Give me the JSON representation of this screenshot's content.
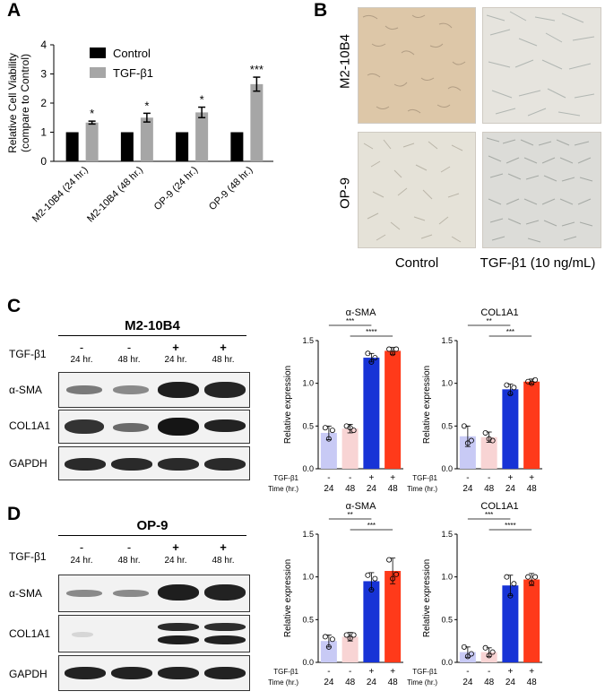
{
  "panels": {
    "a": {
      "letter": "A",
      "chart_data": {
        "type": "bar",
        "ylabel": "Relative Cell Viability\n(compare to Control)",
        "ylabel_lines": [
          "Relative Cell Viability",
          "(compare to Control)"
        ],
        "ylim": [
          0,
          4
        ],
        "yticks": [
          "0",
          "1",
          "2",
          "3",
          "4"
        ],
        "categories": [
          "M2-10B4 (24 hr.)",
          "M2-10B4 (48 hr.)",
          "OP-9 (24 hr.)",
          "OP-9 (48 hr.)"
        ],
        "series": [
          {
            "name": "Control",
            "color": "#000000",
            "values": [
              1,
              1,
              1,
              1
            ],
            "errors": [
              0,
              0,
              0,
              0
            ]
          },
          {
            "name": "TGF-β1",
            "color": "#a6a6a6",
            "values": [
              1.33,
              1.5,
              1.68,
              2.65
            ],
            "errors": [
              0.05,
              0.15,
              0.18,
              0.24
            ]
          }
        ],
        "significance": [
          "*",
          "*",
          "*",
          "***"
        ],
        "legend_position": "top-left"
      }
    },
    "b": {
      "letter": "B",
      "rows": [
        "M2-10B4",
        "OP-9"
      ],
      "columns": [
        "Control",
        "TGF-β1 (10 ng/mL)"
      ]
    },
    "c": {
      "letter": "C",
      "cell_line": "M2-10B4",
      "treatment_label": "TGF-β1",
      "lanes": [
        {
          "sign": "-",
          "time": "24 hr."
        },
        {
          "sign": "-",
          "time": "48 hr."
        },
        {
          "sign": "+",
          "time": "24 hr."
        },
        {
          "sign": "+",
          "time": "48 hr."
        }
      ],
      "proteins": [
        "α-SMA",
        "COL1A1",
        "GAPDH"
      ],
      "charts": [
        {
          "title": "α-SMA",
          "ylabel": "Relative expression",
          "ylim": [
            0,
            1.5
          ],
          "yticks": [
            "0.0",
            "0.5",
            "1.0",
            "1.5"
          ],
          "values": [
            0.42,
            0.47,
            1.3,
            1.38
          ],
          "errors": [
            0.08,
            0.05,
            0.05,
            0.04
          ],
          "points": [
            [
              0.48,
              0.35,
              0.45
            ],
            [
              0.5,
              0.48,
              0.45
            ],
            [
              1.35,
              1.25,
              1.3
            ],
            [
              1.4,
              1.35,
              1.4
            ]
          ],
          "brackets": [
            {
              "from": 0,
              "to": 2,
              "label": "***"
            },
            {
              "from": 1,
              "to": 3,
              "label": "****"
            }
          ],
          "colors": [
            "#c8caf5",
            "#f8d4d4",
            "#1733d6",
            "#ff3a1a"
          ]
        },
        {
          "title": "COL1A1",
          "ylabel": "Relative expression",
          "ylim": [
            0,
            1.5
          ],
          "yticks": [
            "0.0",
            "0.5",
            "1.0",
            "1.5"
          ],
          "values": [
            0.38,
            0.37,
            0.93,
            1.02
          ],
          "errors": [
            0.12,
            0.06,
            0.06,
            0.03
          ],
          "points": [
            [
              0.5,
              0.3,
              0.33
            ],
            [
              0.42,
              0.35,
              0.33
            ],
            [
              0.98,
              0.88,
              0.95
            ],
            [
              1.02,
              1.0,
              1.04
            ]
          ],
          "brackets": [
            {
              "from": 0,
              "to": 2,
              "label": "**"
            },
            {
              "from": 1,
              "to": 3,
              "label": "***"
            }
          ],
          "colors": [
            "#c8caf5",
            "#f8d4d4",
            "#1733d6",
            "#ff3a1a"
          ]
        }
      ]
    },
    "d": {
      "letter": "D",
      "cell_line": "OP-9",
      "treatment_label": "TGF-β1",
      "lanes": [
        {
          "sign": "-",
          "time": "24 hr."
        },
        {
          "sign": "-",
          "time": "48 hr."
        },
        {
          "sign": "+",
          "time": "24 hr."
        },
        {
          "sign": "+",
          "time": "48 hr."
        }
      ],
      "proteins": [
        "α-SMA",
        "COL1A1",
        "GAPDH"
      ],
      "charts": [
        {
          "title": "α-SMA",
          "ylabel": "Relative expression",
          "ylim": [
            0,
            1.5
          ],
          "yticks": [
            "0.0",
            "0.5",
            "1.0",
            "1.5"
          ],
          "values": [
            0.25,
            0.3,
            0.95,
            1.07
          ],
          "errors": [
            0.07,
            0.05,
            0.1,
            0.15
          ],
          "points": [
            [
              0.3,
              0.18,
              0.27
            ],
            [
              0.32,
              0.28,
              0.32
            ],
            [
              1.02,
              0.85,
              0.98
            ],
            [
              1.2,
              0.98,
              1.03
            ]
          ],
          "brackets": [
            {
              "from": 0,
              "to": 2,
              "label": "**"
            },
            {
              "from": 1,
              "to": 3,
              "label": "***"
            }
          ],
          "colors": [
            "#c8caf5",
            "#f8d4d4",
            "#1733d6",
            "#ff3a1a"
          ]
        },
        {
          "title": "COL1A1",
          "ylabel": "Relative expression",
          "ylim": [
            0,
            1.5
          ],
          "yticks": [
            "0.0",
            "0.5",
            "1.0",
            "1.5"
          ],
          "values": [
            0.12,
            0.12,
            0.9,
            0.97
          ],
          "errors": [
            0.06,
            0.05,
            0.12,
            0.07
          ],
          "points": [
            [
              0.18,
              0.07,
              0.1
            ],
            [
              0.17,
              0.08,
              0.12
            ],
            [
              1.0,
              0.78,
              0.92
            ],
            [
              1.0,
              0.93,
              1.0
            ]
          ],
          "brackets": [
            {
              "from": 0,
              "to": 2,
              "label": "***"
            },
            {
              "from": 1,
              "to": 3,
              "label": "****"
            }
          ],
          "colors": [
            "#c8caf5",
            "#f8d4d4",
            "#1733d6",
            "#ff3a1a"
          ]
        }
      ]
    },
    "xaxis": {
      "row1_label": "TGF-β1",
      "row2_label": "Time (hr.)",
      "signs": [
        "-",
        "-",
        "+",
        "+"
      ],
      "times": [
        "24",
        "48",
        "24",
        "48"
      ]
    }
  }
}
